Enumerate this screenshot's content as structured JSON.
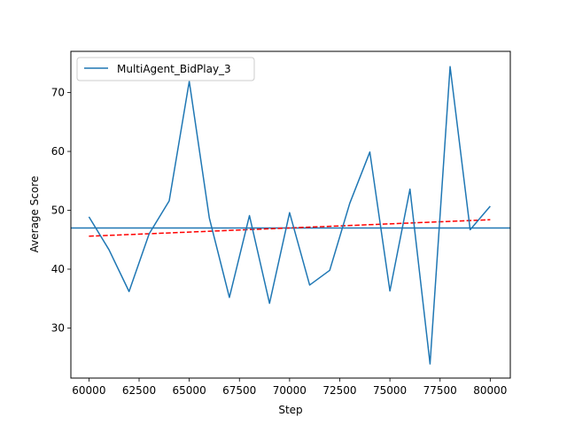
{
  "chart_data": {
    "type": "line",
    "title": "",
    "xlabel": "Step",
    "ylabel": "Average Score",
    "xlim": [
      59100,
      81000
    ],
    "ylim": [
      21.5,
      77.0
    ],
    "xticks": [
      60000,
      62500,
      65000,
      67500,
      70000,
      72500,
      75000,
      77500,
      80000
    ],
    "xtick_labels": [
      "60000",
      "62500",
      "65000",
      "67500",
      "70000",
      "72500",
      "75000",
      "77500",
      "80000"
    ],
    "yticks": [
      30,
      40,
      50,
      60,
      70
    ],
    "ytick_labels": [
      "30",
      "40",
      "50",
      "60",
      "70"
    ],
    "grid": false,
    "legend_position": "upper-left",
    "series": [
      {
        "name": "MultiAgent_BidPlay_3",
        "color": "#1f77b4",
        "x": [
          60000,
          61000,
          62000,
          63000,
          64000,
          65000,
          66000,
          67000,
          68000,
          69000,
          70000,
          71000,
          72000,
          73000,
          74000,
          75000,
          76000,
          77000,
          78000,
          79000,
          80000
        ],
        "y": [
          48.9,
          43.3,
          36.2,
          46.0,
          51.6,
          71.9,
          48.7,
          35.2,
          49.1,
          34.2,
          49.6,
          37.3,
          39.8,
          51.2,
          59.9,
          36.3,
          53.6,
          23.9,
          74.4,
          46.7,
          50.7
        ]
      }
    ],
    "mean_line": {
      "y": 47.0,
      "color": "#1f77b4",
      "style": "solid"
    },
    "trend_line": {
      "x": [
        60000,
        80000
      ],
      "y": [
        45.6,
        48.4
      ],
      "color": "#ff0000",
      "style": "dashed"
    }
  }
}
